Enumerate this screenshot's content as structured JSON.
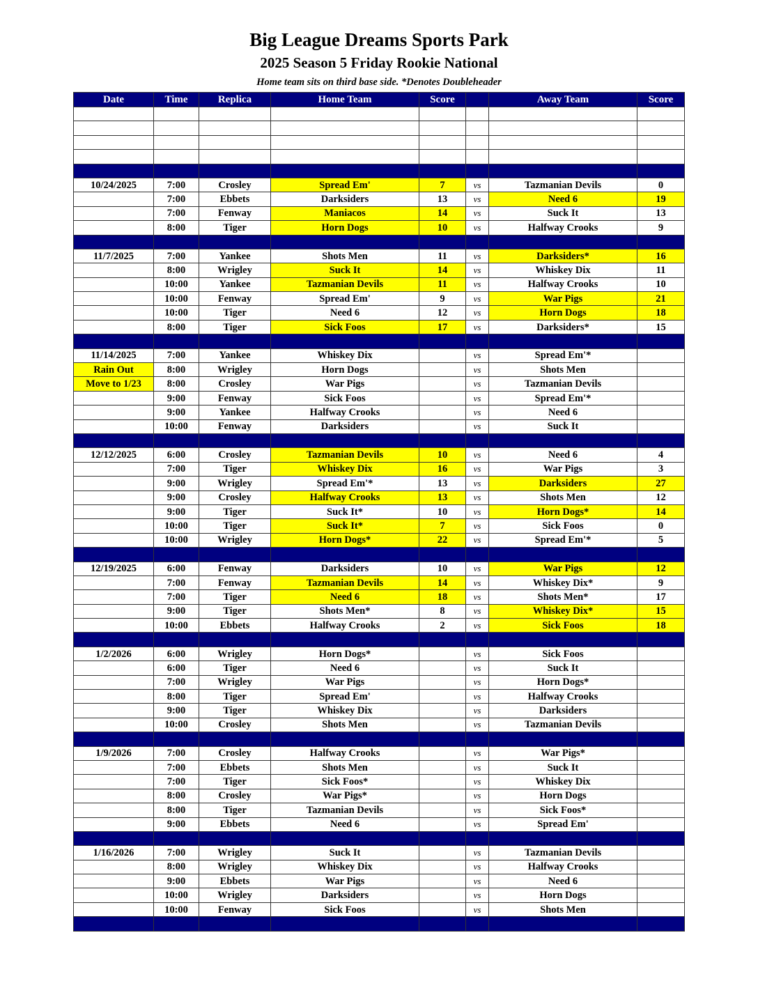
{
  "header": {
    "title": "Big League Dreams Sports Park",
    "subtitle": "2025 Season 5 Friday Rookie National",
    "note": "Home team sits on third base side.  *Denotes Doubleheader"
  },
  "colors": {
    "header_bg": "#000080",
    "highlight": "#ffff00"
  },
  "columns": [
    "Date",
    "Time",
    "Replica",
    "Home Team",
    "Score",
    "",
    "Away Team",
    "Score"
  ],
  "vs_label": "vs",
  "blank_rows": 4,
  "weeks": [
    {
      "games": [
        {
          "date": "10/24/2025",
          "time": "7:00",
          "replica": "Crosley",
          "home": "Spread Em'",
          "home_score": "7",
          "away": "Tazmanian Devils",
          "away_score": "0",
          "winner": "home"
        },
        {
          "date": "",
          "time": "7:00",
          "replica": "Ebbets",
          "home": "Darksiders",
          "home_score": "13",
          "away": "Need 6",
          "away_score": "19",
          "winner": "away"
        },
        {
          "date": "",
          "time": "7:00",
          "replica": "Fenway",
          "home": "Maniacos",
          "home_score": "14",
          "away": "Suck It",
          "away_score": "13",
          "winner": "home"
        },
        {
          "date": "",
          "time": "8:00",
          "replica": "Tiger",
          "home": "Horn Dogs",
          "home_score": "10",
          "away": "Halfway Crooks",
          "away_score": "9",
          "winner": "home"
        }
      ]
    },
    {
      "games": [
        {
          "date": "11/7/2025",
          "time": "7:00",
          "replica": "Yankee",
          "home": "Shots Men",
          "home_score": "11",
          "away": "Darksiders*",
          "away_score": "16",
          "winner": "away"
        },
        {
          "date": "",
          "time": "8:00",
          "replica": "Wrigley",
          "home": "Suck It",
          "home_score": "14",
          "away": "Whiskey Dix",
          "away_score": "11",
          "winner": "home"
        },
        {
          "date": "",
          "time": "10:00",
          "replica": "Yankee",
          "home": "Tazmanian Devils",
          "home_score": "11",
          "away": "Halfway Crooks",
          "away_score": "10",
          "winner": "home"
        },
        {
          "date": "",
          "time": "10:00",
          "replica": "Fenway",
          "home": "Spread Em'",
          "home_score": "9",
          "away": "War Pigs",
          "away_score": "21",
          "winner": "away"
        },
        {
          "date": "",
          "time": "10:00",
          "replica": "Tiger",
          "home": "Need 6",
          "home_score": "12",
          "away": "Horn Dogs",
          "away_score": "18",
          "winner": "away"
        },
        {
          "date": "",
          "time": "8:00",
          "replica": "Tiger",
          "home": "Sick Foos",
          "home_score": "17",
          "away": "Darksiders*",
          "away_score": "15",
          "winner": "home"
        }
      ]
    },
    {
      "games": [
        {
          "date": "11/14/2025",
          "time": "7:00",
          "replica": "Yankee",
          "home": "Whiskey Dix",
          "home_score": "",
          "away": "Spread Em'*",
          "away_score": "",
          "winner": ""
        },
        {
          "date": "Rain Out",
          "date_highlight": true,
          "time": "8:00",
          "replica": "Wrigley",
          "home": "Horn Dogs",
          "home_score": "",
          "away": "Shots Men",
          "away_score": "",
          "winner": ""
        },
        {
          "date": "Move to 1/23",
          "date_highlight": true,
          "time": "8:00",
          "replica": "Crosley",
          "home": "War Pigs",
          "home_score": "",
          "away": "Tazmanian Devils",
          "away_score": "",
          "winner": ""
        },
        {
          "date": "",
          "time": "9:00",
          "replica": "Fenway",
          "home": "Sick Foos",
          "home_score": "",
          "away": "Spread Em'*",
          "away_score": "",
          "winner": ""
        },
        {
          "date": "",
          "time": "9:00",
          "replica": "Yankee",
          "home": "Halfway Crooks",
          "home_score": "",
          "away": "Need 6",
          "away_score": "",
          "winner": ""
        },
        {
          "date": "",
          "time": "10:00",
          "replica": "Fenway",
          "home": "Darksiders",
          "home_score": "",
          "away": "Suck It",
          "away_score": "",
          "winner": ""
        }
      ]
    },
    {
      "games": [
        {
          "date": "12/12/2025",
          "time": "6:00",
          "replica": "Crosley",
          "home": "Tazmanian Devils",
          "home_score": "10",
          "away": "Need 6",
          "away_score": "4",
          "winner": "home"
        },
        {
          "date": "",
          "time": "7:00",
          "replica": "Tiger",
          "home": "Whiskey Dix",
          "home_score": "16",
          "away": "War Pigs",
          "away_score": "3",
          "winner": "home"
        },
        {
          "date": "",
          "time": "9:00",
          "replica": "Wrigley",
          "home": "Spread Em'*",
          "home_score": "13",
          "away": "Darksiders",
          "away_score": "27",
          "winner": "away"
        },
        {
          "date": "",
          "time": "9:00",
          "replica": "Crosley",
          "home": "Halfway Crooks",
          "home_score": "13",
          "away": "Shots Men",
          "away_score": "12",
          "winner": "home"
        },
        {
          "date": "",
          "time": "9:00",
          "replica": "Tiger",
          "home": "Suck It*",
          "home_score": "10",
          "away": "Horn Dogs*",
          "away_score": "14",
          "winner": "away"
        },
        {
          "date": "",
          "time": "10:00",
          "replica": "Tiger",
          "home": "Suck It*",
          "home_score": "7",
          "away": "Sick Foos",
          "away_score": "0",
          "winner": "home"
        },
        {
          "date": "",
          "time": "10:00",
          "replica": "Wrigley",
          "home": "Horn Dogs*",
          "home_score": "22",
          "away": "Spread Em'*",
          "away_score": "5",
          "winner": "home"
        }
      ]
    },
    {
      "games": [
        {
          "date": "12/19/2025",
          "time": "6:00",
          "replica": "Fenway",
          "home": "Darksiders",
          "home_score": "10",
          "away": "War Pigs",
          "away_score": "12",
          "winner": "away"
        },
        {
          "date": "",
          "time": "7:00",
          "replica": "Fenway",
          "home": "Tazmanian Devils",
          "home_score": "14",
          "away": "Whiskey Dix*",
          "away_score": "9",
          "winner": "home"
        },
        {
          "date": "",
          "time": "7:00",
          "replica": "Tiger",
          "home": "Need 6",
          "home_score": "18",
          "away": "Shots Men*",
          "away_score": "17",
          "winner": "home"
        },
        {
          "date": "",
          "time": "9:00",
          "replica": "Tiger",
          "home": "Shots Men*",
          "home_score": "8",
          "away": "Whiskey Dix*",
          "away_score": "15",
          "winner": "away"
        },
        {
          "date": "",
          "time": "10:00",
          "replica": "Ebbets",
          "home": "Halfway Crooks",
          "home_score": "2",
          "away": "Sick Foos",
          "away_score": "18",
          "winner": "away"
        }
      ]
    },
    {
      "games": [
        {
          "date": "1/2/2026",
          "time": "6:00",
          "replica": "Wrigley",
          "home": "Horn Dogs*",
          "home_score": "",
          "away": "Sick Foos",
          "away_score": "",
          "winner": ""
        },
        {
          "date": "",
          "time": "6:00",
          "replica": "Tiger",
          "home": "Need 6",
          "home_score": "",
          "away": "Suck It",
          "away_score": "",
          "winner": ""
        },
        {
          "date": "",
          "time": "7:00",
          "replica": "Wrigley",
          "home": "War Pigs",
          "home_score": "",
          "away": "Horn Dogs*",
          "away_score": "",
          "winner": ""
        },
        {
          "date": "",
          "time": "8:00",
          "replica": "Tiger",
          "home": "Spread Em'",
          "home_score": "",
          "away": "Halfway Crooks",
          "away_score": "",
          "winner": ""
        },
        {
          "date": "",
          "time": "9:00",
          "replica": "Tiger",
          "home": "Whiskey Dix",
          "home_score": "",
          "away": "Darksiders",
          "away_score": "",
          "winner": ""
        },
        {
          "date": "",
          "time": "10:00",
          "replica": "Crosley",
          "home": "Shots Men",
          "home_score": "",
          "away": "Tazmanian Devils",
          "away_score": "",
          "winner": ""
        }
      ]
    },
    {
      "games": [
        {
          "date": "1/9/2026",
          "time": "7:00",
          "replica": "Crosley",
          "home": "Halfway Crooks",
          "home_score": "",
          "away": "War Pigs*",
          "away_score": "",
          "winner": ""
        },
        {
          "date": "",
          "time": "7:00",
          "replica": "Ebbets",
          "home": "Shots Men",
          "home_score": "",
          "away": "Suck It",
          "away_score": "",
          "winner": ""
        },
        {
          "date": "",
          "time": "7:00",
          "replica": "Tiger",
          "home": "Sick Foos*",
          "home_score": "",
          "away": "Whiskey Dix",
          "away_score": "",
          "winner": ""
        },
        {
          "date": "",
          "time": "8:00",
          "replica": "Crosley",
          "home": "War Pigs*",
          "home_score": "",
          "away": "Horn Dogs",
          "away_score": "",
          "winner": ""
        },
        {
          "date": "",
          "time": "8:00",
          "replica": "Tiger",
          "home": "Tazmanian Devils",
          "home_score": "",
          "away": "Sick Foos*",
          "away_score": "",
          "winner": ""
        },
        {
          "date": "",
          "time": "9:00",
          "replica": "Ebbets",
          "home": "Need 6",
          "home_score": "",
          "away": "Spread Em'",
          "away_score": "",
          "winner": ""
        }
      ]
    },
    {
      "games": [
        {
          "date": "1/16/2026",
          "time": "7:00",
          "replica": "Wrigley",
          "home": "Suck It",
          "home_score": "",
          "away": "Tazmanian Devils",
          "away_score": "",
          "winner": ""
        },
        {
          "date": "",
          "time": "8:00",
          "replica": "Wrigley",
          "home": "Whiskey Dix",
          "home_score": "",
          "away": "Halfway Crooks",
          "away_score": "",
          "winner": ""
        },
        {
          "date": "",
          "time": "9:00",
          "replica": "Ebbets",
          "home": "War Pigs",
          "home_score": "",
          "away": "Need 6",
          "away_score": "",
          "winner": ""
        },
        {
          "date": "",
          "time": "10:00",
          "replica": "Wrigley",
          "home": "Darksiders",
          "home_score": "",
          "away": "Horn Dogs",
          "away_score": "",
          "winner": ""
        },
        {
          "date": "",
          "time": "10:00",
          "replica": "Fenway",
          "home": "Sick Foos",
          "home_score": "",
          "away": "Shots Men",
          "away_score": "",
          "winner": ""
        }
      ]
    }
  ]
}
